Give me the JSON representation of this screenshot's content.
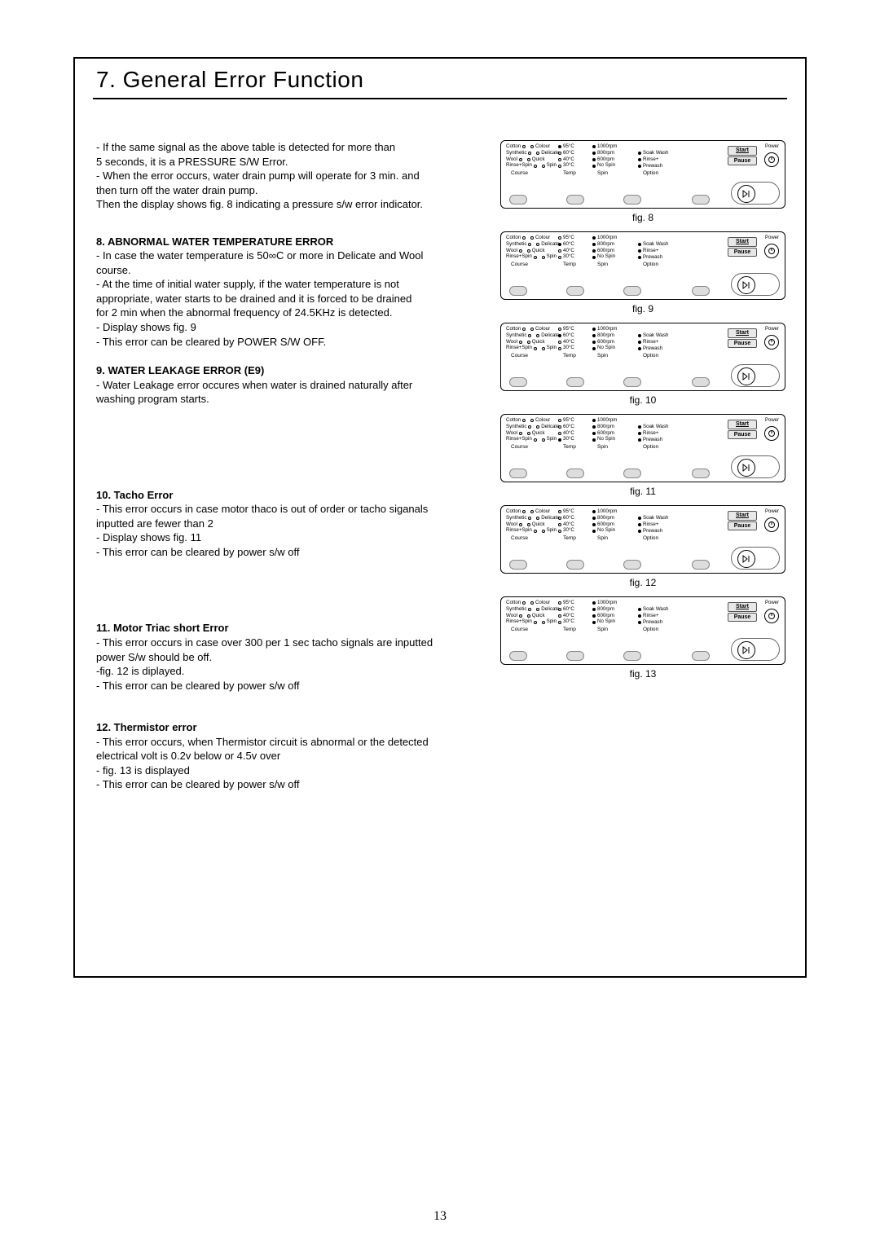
{
  "title": "7. General Error Function",
  "page_number": "13",
  "panel_labels": {
    "course_col": [
      {
        "l": "Cotton",
        "r": "Colour"
      },
      {
        "l": "Synthetic",
        "r": "Delicate"
      },
      {
        "l": "Wool",
        "r": "Quick"
      },
      {
        "l": "Rinse+Spin",
        "r": "Spin"
      }
    ],
    "temp_col": [
      "95°C",
      "60°C",
      "40°C",
      "30°C"
    ],
    "spin_col": [
      "1000rpm",
      "800rpm",
      "600rpm",
      "No Spin"
    ],
    "option_col": [
      "Soak Wash",
      "Rinse+",
      "Prewash"
    ],
    "col_headers": {
      "course": "Course",
      "temp": "Temp",
      "spin": "Spin",
      "option": "Option"
    },
    "start": "Start",
    "pause": "Pause",
    "power": "Power"
  },
  "figures": [
    {
      "caption": "fig. 8",
      "temp_fill": 0,
      "option_vis": true
    },
    {
      "caption": "fig. 9",
      "temp_fill": 1,
      "option_vis": true
    },
    {
      "caption": "fig. 10",
      "temp_fill": 1,
      "option_vis": true
    },
    {
      "caption": "fig. 11",
      "temp_fill": 3,
      "option_vis": true
    },
    {
      "caption": "fig. 12",
      "temp_fill": -1,
      "option_vis": true
    },
    {
      "caption": "fig. 13",
      "temp_fill": -1,
      "option_vis": true
    }
  ],
  "blocks": [
    {
      "heading": null,
      "spacer": 0,
      "lines": [
        "- If the same signal as the above table is detected for more than",
        "  5 seconds,  it is a PRESSURE S/W Error.",
        "- When the error occurs, water drain pump will operate for 3 min. and",
        "  then turn off the water drain pump.",
        "  Then the display shows  fig. 8  indicating a pressure s/w error indicator."
      ]
    },
    {
      "heading": "8. ABNORMAL WATER TEMPERATURE ERROR",
      "spacer": 14,
      "lines": [
        "- In case the water temperature is 50∞C or more in Delicate and Wool",
        "  course.",
        "- At the time of initial water supply, if the water temperature is not",
        "  appropriate, water starts to be drained  and it is forced to be drained",
        "  for 2 min when the abnormal frequency of 24.5KHz is detected.",
        "- Display shows  fig. 9",
        "- This error can be cleared by POWER S/W OFF."
      ]
    },
    {
      "heading": "9. WATER LEAKAGE ERROR (E9)",
      "spacer": 4,
      "lines": [
        "- Water Leakage error occures when water is drained naturally after",
        "  washing program starts."
      ]
    },
    {
      "heading": "10. Tacho Error",
      "spacer": 86,
      "lines": [
        "- This error occurs in case motor thaco is out of order or tacho siganals",
        "  inputted are fewer than 2",
        "- Display shows  fig. 11",
        "- This error can be cleared by power s/w off"
      ]
    },
    {
      "heading": "11. Motor Triac short Error",
      "spacer": 62,
      "lines": [
        "- This error occurs in case over 300 per 1 sec tacho signals are inputted",
        " power S/w should be off.",
        "-fig. 12 is diplayed.",
        "- This error can be cleared by power s/w off"
      ]
    },
    {
      "heading": "12. Thermistor error",
      "spacer": 20,
      "lines": [
        "- This error occurs, when Thermistor circuit is abnormal or the detected",
        "  electrical volt is 0.2v below or 4.5v over",
        "- fig. 13 is displayed",
        "- This error can be cleared by power s/w off"
      ]
    }
  ]
}
